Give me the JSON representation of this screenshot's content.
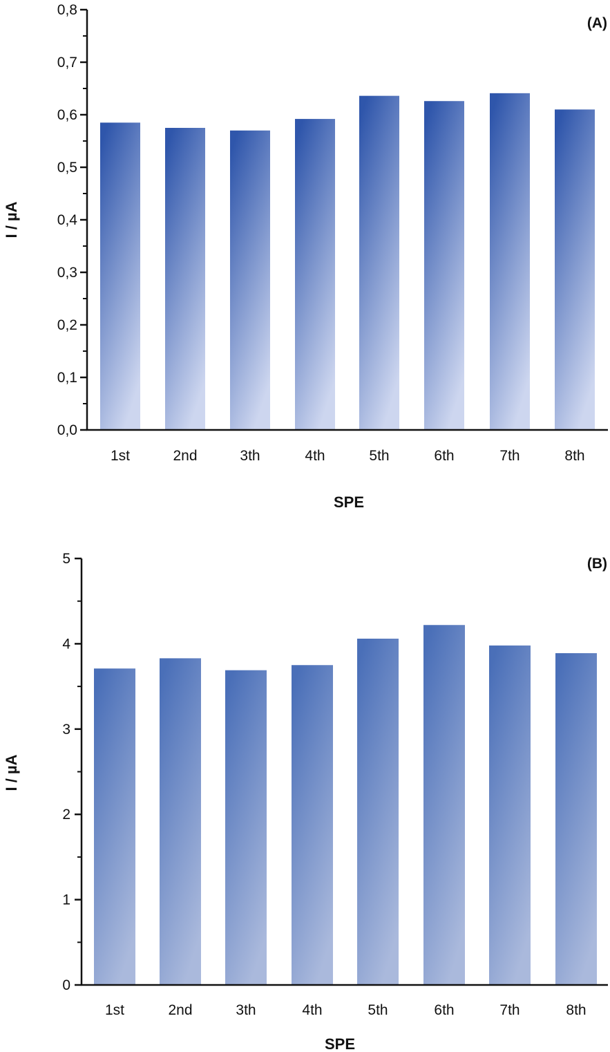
{
  "chart_data": [
    {
      "type": "bar",
      "panel_label": "(A)",
      "categories": [
        "1st",
        "2nd",
        "3th",
        "4th",
        "5th",
        "6th",
        "7th",
        "8th"
      ],
      "values": [
        0.585,
        0.575,
        0.57,
        0.592,
        0.636,
        0.626,
        0.641,
        0.61
      ],
      "xlabel": "SPE",
      "ylabel": "I / µA",
      "ylim": [
        0,
        0.8
      ],
      "yticks": [
        0,
        0.1,
        0.2,
        0.3,
        0.4,
        0.5,
        0.6,
        0.7,
        0.8
      ],
      "ytick_labels": [
        "0,0",
        "0,1",
        "0,2",
        "0,3",
        "0,4",
        "0,5",
        "0,6",
        "0,7",
        "0,8"
      ],
      "grid": false,
      "colors": {
        "bar_top": "#2f56ab",
        "bar_bottom": "#cdd6ef"
      }
    },
    {
      "type": "bar",
      "panel_label": "(B)",
      "categories": [
        "1st",
        "2nd",
        "3th",
        "4th",
        "5th",
        "6th",
        "7th",
        "8th"
      ],
      "values": [
        3.71,
        3.83,
        3.69,
        3.75,
        4.06,
        4.22,
        3.98,
        3.89
      ],
      "xlabel": "SPE",
      "ylabel": "I / µA",
      "ylim": [
        0,
        5
      ],
      "yticks": [
        0,
        1,
        2,
        3,
        4,
        5
      ],
      "ytick_labels": [
        "0",
        "1",
        "2",
        "3",
        "4",
        "5"
      ],
      "grid": false,
      "colors": {
        "bar_top": "#4a6fb8",
        "bar_bottom": "#aab9dc"
      }
    }
  ]
}
